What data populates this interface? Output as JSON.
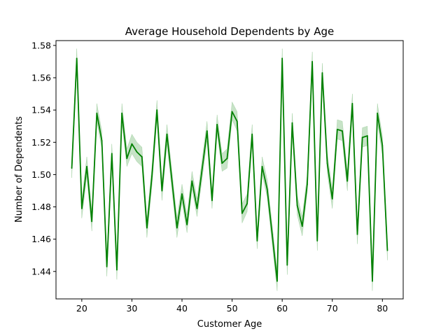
{
  "chart_data": {
    "type": "line",
    "title": "Average Household Dependents by Age",
    "xlabel": "Customer Age",
    "ylabel": "Number of Dependents",
    "xlim": [
      14.85,
      84.15
    ],
    "ylim": [
      1.423,
      1.583
    ],
    "xticks": [
      20,
      30,
      40,
      50,
      60,
      70,
      80
    ],
    "yticks": [
      1.44,
      1.46,
      1.48,
      1.5,
      1.52,
      1.54,
      1.56,
      1.58
    ],
    "ytick_labels": [
      "1.44",
      "1.46",
      "1.48",
      "1.50",
      "1.52",
      "1.54",
      "1.56",
      "1.58"
    ],
    "grid": false,
    "line_color": "#008000",
    "band_color": "#008000",
    "series": [
      {
        "x": [
          18,
          19,
          20,
          21,
          22,
          23,
          24,
          25,
          26,
          27,
          28,
          29,
          30,
          31,
          32,
          33,
          34,
          35,
          36,
          37,
          38,
          39,
          40,
          41,
          42,
          43,
          44,
          45,
          46,
          47,
          48,
          49,
          50,
          51,
          52,
          53,
          54,
          55,
          56,
          57,
          58,
          59,
          60,
          61,
          62,
          63,
          64,
          65,
          66,
          67,
          68,
          69,
          70,
          71,
          72,
          73,
          74,
          75,
          76,
          77,
          78,
          79,
          80,
          81
        ],
        "y": [
          1.504,
          1.572,
          1.479,
          1.505,
          1.471,
          1.538,
          1.521,
          1.443,
          1.513,
          1.441,
          1.538,
          1.51,
          1.519,
          1.514,
          1.511,
          1.467,
          1.499,
          1.54,
          1.49,
          1.525,
          1.496,
          1.467,
          1.488,
          1.469,
          1.496,
          1.479,
          1.503,
          1.527,
          1.484,
          1.531,
          1.507,
          1.51,
          1.539,
          1.533,
          1.476,
          1.482,
          1.525,
          1.459,
          1.505,
          1.491,
          1.463,
          1.434,
          1.572,
          1.444,
          1.532,
          1.481,
          1.468,
          1.494,
          1.57,
          1.459,
          1.563,
          1.507,
          1.485,
          1.528,
          1.527,
          1.496,
          1.544,
          1.463,
          1.523,
          1.524,
          1.434,
          1.538,
          1.518,
          1.453
        ],
        "ci_low": [
          1.498,
          1.566,
          1.473,
          1.499,
          1.465,
          1.533,
          1.516,
          1.437,
          1.507,
          1.435,
          1.532,
          1.505,
          1.513,
          1.508,
          1.505,
          1.461,
          1.493,
          1.534,
          1.484,
          1.519,
          1.49,
          1.461,
          1.483,
          1.464,
          1.491,
          1.474,
          1.497,
          1.521,
          1.479,
          1.526,
          1.502,
          1.504,
          1.534,
          1.527,
          1.47,
          1.477,
          1.52,
          1.454,
          1.5,
          1.486,
          1.457,
          1.428,
          1.566,
          1.438,
          1.526,
          1.475,
          1.462,
          1.489,
          1.564,
          1.453,
          1.557,
          1.501,
          1.479,
          1.522,
          1.521,
          1.49,
          1.538,
          1.457,
          1.517,
          1.518,
          1.428,
          1.532,
          1.512,
          1.447
        ],
        "ci_high": [
          1.51,
          1.578,
          1.485,
          1.511,
          1.477,
          1.544,
          1.527,
          1.449,
          1.519,
          1.447,
          1.544,
          1.516,
          1.525,
          1.52,
          1.517,
          1.473,
          1.505,
          1.546,
          1.496,
          1.531,
          1.502,
          1.473,
          1.494,
          1.475,
          1.502,
          1.485,
          1.509,
          1.533,
          1.49,
          1.537,
          1.513,
          1.516,
          1.545,
          1.539,
          1.482,
          1.488,
          1.531,
          1.465,
          1.511,
          1.497,
          1.469,
          1.44,
          1.578,
          1.45,
          1.538,
          1.487,
          1.474,
          1.5,
          1.576,
          1.465,
          1.569,
          1.513,
          1.491,
          1.534,
          1.533,
          1.502,
          1.55,
          1.469,
          1.529,
          1.53,
          1.44,
          1.544,
          1.524,
          1.459
        ]
      }
    ]
  }
}
